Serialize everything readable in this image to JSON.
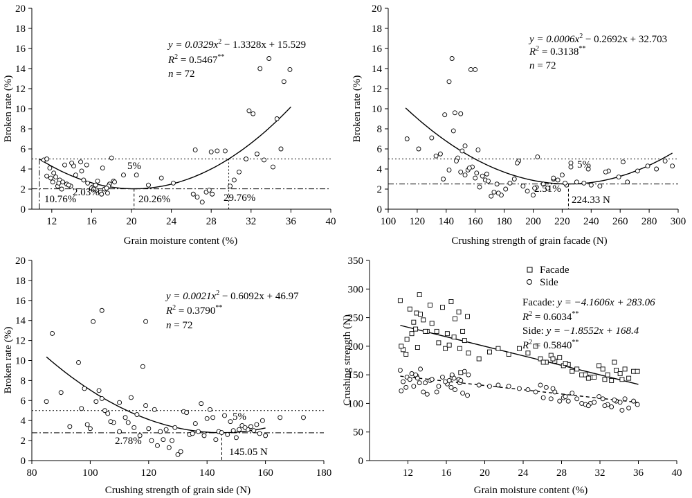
{
  "chart_data": [
    {
      "type": "scatter",
      "xlabel": "Grain moisture content (%)",
      "ylabel": "Broken rate (%)",
      "xlim": [
        10,
        40
      ],
      "ylim": [
        0,
        20
      ],
      "xticks": [
        12,
        16,
        20,
        24,
        28,
        32,
        36,
        40
      ],
      "yticks": [
        0,
        2,
        4,
        6,
        8,
        10,
        12,
        14,
        16,
        18,
        20
      ],
      "annotations": {
        "equation_main": "y = 0.0329x",
        "equation_rest": " − 1.3328x + 15.529",
        "r2_value": " = 0.5467",
        "n_value": " = 72",
        "thr_label": "5%",
        "min_label": "2.03%",
        "opt_label": "20.26%",
        "left_label": "10.76%",
        "right_label": "29.76%"
      },
      "fit": {
        "a": 0.0329,
        "b": -1.3328,
        "c": 15.529,
        "x_range": [
          10.76,
          36
        ]
      },
      "threshold": 5,
      "minimum": [
        20.26,
        2.03
      ],
      "bounds": [
        10.76,
        29.76
      ],
      "series": [
        {
          "marker": "circle",
          "x": [
            11.2,
            11.5,
            11.8,
            12.2,
            12.4,
            12.8,
            13.1,
            13.5,
            13.9,
            14.4,
            15.0,
            15.6,
            16.1,
            16.5,
            16.9,
            17.3,
            17.8,
            18.2,
            11.5,
            12.1,
            12.6,
            13.0,
            13.7,
            14.2,
            14.9,
            15.5,
            16.0,
            16.6,
            17.1,
            17.7,
            18.3,
            11.9,
            12.7,
            13.3,
            14.0,
            15.2,
            16.4,
            17.5,
            18.0,
            16.2,
            17.0,
            17.6,
            19.2,
            20.5,
            21.7,
            23.0,
            24.2,
            26.2,
            26.6,
            27.1,
            27.5,
            27.8,
            28.1,
            28.6,
            29.4,
            29.9,
            30.3,
            30.8,
            31.5,
            31.8,
            32.2,
            32.6,
            32.9,
            33.3,
            33.8,
            34.2,
            34.6,
            35.0,
            35.3,
            35.9,
            26.4,
            28.0
          ],
          "y": [
            4.9,
            5.0,
            4.1,
            3.6,
            3.2,
            2.9,
            2.7,
            2.5,
            2.3,
            3.4,
            3.8,
            2.6,
            2.2,
            1.9,
            1.7,
            2.0,
            2.5,
            2.8,
            3.3,
            2.7,
            2.3,
            2.0,
            2.4,
            4.3,
            4.7,
            4.4,
            2.1,
            2.8,
            4.1,
            2.3,
            2.7,
            3.1,
            2.6,
            4.4,
            4.6,
            2.9,
            2.4,
            2.1,
            5.1,
            2.0,
            1.5,
            1.6,
            3.4,
            3.4,
            2.4,
            3.1,
            2.6,
            1.5,
            1.2,
            0.7,
            1.7,
            1.9,
            1.5,
            5.8,
            5.8,
            2.3,
            2.9,
            3.7,
            5.0,
            9.8,
            9.5,
            5.5,
            14.0,
            4.9,
            15.0,
            4.2,
            9.0,
            6.0,
            12.7,
            13.9,
            5.9,
            5.7
          ]
        }
      ]
    },
    {
      "type": "scatter",
      "xlabel": "Crushing strength of grain facade (N)",
      "ylabel": "Broken rate (%)",
      "xlim": [
        100,
        300
      ],
      "ylim": [
        0,
        20
      ],
      "xticks": [
        100,
        120,
        140,
        160,
        180,
        200,
        220,
        240,
        260,
        280,
        300
      ],
      "yticks": [
        0,
        2,
        4,
        6,
        8,
        10,
        12,
        14,
        16,
        18,
        20
      ],
      "annotations": {
        "equation_main": "y = 0.0006x",
        "equation_rest": " − 0.2692x + 32.703",
        "r2_value": " = 0.3138",
        "n_value": " = 72",
        "thr_label": "5%",
        "min_label": "2.51%",
        "opt_label": "224.33 N"
      },
      "fit": {
        "a": 0.0006,
        "b": -0.2692,
        "c": 32.703,
        "x_range": [
          112,
          296
        ]
      },
      "threshold": 5,
      "minimum": [
        224.33,
        2.51
      ],
      "series": [
        {
          "marker": "circle",
          "x": [
            113,
            121,
            130,
            133,
            136,
            139,
            142,
            144,
            146,
            148,
            150,
            151,
            153,
            155,
            157,
            158,
            160,
            161,
            162,
            163,
            165,
            167,
            169,
            171,
            173,
            175,
            178,
            181,
            184,
            187,
            190,
            193,
            196,
            200,
            203,
            207,
            210,
            214,
            217,
            220,
            223,
            226,
            230,
            235,
            240,
            246,
            252,
            259,
            265,
            272,
            279,
            285,
            291,
            296,
            142,
            145,
            150,
            156,
            160,
            138,
            147,
            153,
            168,
            176,
            189,
            201,
            214,
            222,
            226,
            238,
            250,
            262
          ],
          "y": [
            7.0,
            6.0,
            7.1,
            5.3,
            5.5,
            9.4,
            12.7,
            15.0,
            9.6,
            5.1,
            9.5,
            5.8,
            6.3,
            3.9,
            13.9,
            4.2,
            13.9,
            3.6,
            5.9,
            2.2,
            3.3,
            2.9,
            2.8,
            1.3,
            1.7,
            2.5,
            1.4,
            2.0,
            2.6,
            3.0,
            4.8,
            2.3,
            1.8,
            1.4,
            5.2,
            2.5,
            2.1,
            3.0,
            2.9,
            3.4,
            2.4,
            4.6,
            2.7,
            2.6,
            2.4,
            2.3,
            3.8,
            3.2,
            2.7,
            3.8,
            4.3,
            4.0,
            4.8,
            4.3,
            3.9,
            7.8,
            3.7,
            4.1,
            3.1,
            3.0,
            4.8,
            3.4,
            3.5,
            1.6,
            4.6,
            2.1,
            3.1,
            2.6,
            4.2,
            4.0,
            3.7,
            4.7
          ]
        }
      ]
    },
    {
      "type": "scatter",
      "xlabel": "Crushing strength of grain side (N)",
      "ylabel": "Broken rate (%)",
      "xlim": [
        80,
        180
      ],
      "ylim": [
        0,
        20
      ],
      "xticks": [
        80,
        100,
        120,
        140,
        160,
        180
      ],
      "yticks": [
        0,
        2,
        4,
        6,
        8,
        10,
        12,
        14,
        16,
        18,
        20
      ],
      "annotations": {
        "equation_main": "y = 0.0021x",
        "equation_rest": " − 0.6092x + 46.97",
        "r2_value": " = 0.3790",
        "n_value": " = 72",
        "thr_label": "5%",
        "min_label": "2.78%",
        "opt_label": "145.05 N"
      },
      "fit": {
        "a": 0.0021,
        "b": -0.6092,
        "c": 46.97,
        "x_range": [
          85,
          160
        ]
      },
      "threshold": 5,
      "minimum": [
        145.05,
        2.78
      ],
      "series": [
        {
          "marker": "circle",
          "x": [
            85,
            87,
            90,
            93,
            96,
            98,
            99,
            101,
            103,
            104,
            105,
            106,
            108,
            110,
            112,
            114,
            116,
            118,
            119,
            120,
            122,
            124,
            126,
            128,
            130,
            132,
            134,
            136,
            138,
            140,
            142,
            144,
            146,
            148,
            150,
            152,
            154,
            156,
            158,
            160,
            173,
            102,
            104,
            110,
            117,
            121,
            125,
            129,
            133,
            137,
            141,
            145,
            149,
            153,
            157,
            100,
            107,
            113,
            119,
            123,
            127,
            131,
            135,
            139,
            143,
            147,
            151,
            155,
            159,
            115,
            97,
            165
          ],
          "y": [
            5.9,
            12.7,
            6.8,
            3.4,
            9.8,
            7.2,
            3.6,
            13.9,
            7.0,
            15.0,
            5.0,
            4.7,
            3.8,
            5.8,
            4.3,
            6.3,
            4.6,
            9.4,
            13.9,
            3.2,
            5.1,
            2.9,
            3.1,
            2.0,
            0.6,
            4.9,
            2.6,
            3.7,
            5.7,
            4.2,
            4.3,
            2.9,
            4.5,
            3.9,
            2.3,
            3.5,
            3.1,
            3.0,
            2.7,
            2.5,
            4.3,
            5.9,
            6.2,
            2.9,
            2.5,
            2.0,
            2.1,
            3.3,
            4.8,
            2.9,
            5.1,
            2.8,
            3.0,
            3.3,
            3.6,
            3.2,
            3.9,
            3.8,
            5.5,
            1.5,
            1.3,
            0.9,
            2.7,
            2.5,
            2.1,
            2.6,
            3.1,
            3.4,
            4.0,
            3.3,
            5.2,
            4.3
          ]
        }
      ]
    },
    {
      "type": "scatter",
      "xlabel": "Grain moisture content (%)",
      "ylabel": "Crushing strength (N)",
      "xlim": [
        8,
        40
      ],
      "ylim": [
        0,
        350
      ],
      "xticks": [
        12,
        16,
        20,
        24,
        28,
        32,
        36,
        40
      ],
      "yticks": [
        0,
        50,
        100,
        150,
        200,
        250,
        300,
        350
      ],
      "legend_position": "top",
      "annotations": {
        "facade_eq": "Facade: ",
        "facade_eq_b": "y = −4.1606x + 283.06",
        "facade_r2": " = 0.6034",
        "side_eq": "Side: ",
        "side_eq_b": "y = −1.8552x + 168.4",
        "side_r2": " = 0.5840"
      },
      "series": [
        {
          "name": "Facade",
          "marker": "square",
          "fit": {
            "slope": -4.1606,
            "intercept": 283.06,
            "x_range": [
              11.2,
              36
            ]
          },
          "x": [
            11.2,
            11.5,
            11.9,
            12.2,
            12.6,
            12.9,
            13.2,
            13.6,
            14.0,
            14.3,
            15.0,
            15.6,
            16.1,
            16.5,
            16.9,
            17.3,
            17.7,
            18.2,
            11.3,
            11.8,
            12.4,
            12.8,
            13.3,
            13.8,
            14.5,
            15.2,
            15.9,
            16.3,
            16.8,
            17.4,
            17.9,
            18.3,
            19.4,
            20.5,
            21.4,
            22.5,
            23.6,
            24.5,
            25.8,
            26.4,
            26.9,
            27.3,
            27.8,
            28.2,
            28.7,
            29.1,
            29.6,
            30.1,
            30.5,
            31.0,
            31.4,
            31.9,
            32.3,
            32.8,
            33.2,
            33.7,
            34.1,
            34.6,
            35.0,
            35.5,
            35.9,
            25.3,
            26.1,
            27.1,
            32.5,
            33.5,
            34.3,
            13.0,
            16.6,
            17.5,
            28.4,
            30.8
          ],
          "y": [
            280,
            194,
            212,
            265,
            242,
            258,
            290,
            246,
            226,
            272,
            226,
            268,
            222,
            278,
            248,
            260,
            226,
            252,
            200,
            186,
            222,
            230,
            256,
            226,
            240,
            206,
            196,
            202,
            216,
            196,
            210,
            188,
            178,
            190,
            196,
            186,
            196,
            188,
            178,
            172,
            184,
            174,
            180,
            166,
            168,
            156,
            160,
            150,
            150,
            146,
            146,
            166,
            160,
            150,
            140,
            158,
            152,
            160,
            144,
            156,
            156,
            200,
            172,
            178,
            142,
            172,
            142,
            198,
            146,
            154,
            170,
            144
          ]
        },
        {
          "name": "Side",
          "marker": "circle",
          "dashed": true,
          "fit": {
            "slope": -1.8552,
            "intercept": 168.4,
            "x_range": [
              11.2,
              36
            ]
          },
          "x": [
            11.2,
            11.5,
            11.9,
            12.2,
            12.6,
            12.9,
            13.2,
            13.6,
            14.0,
            14.3,
            15.0,
            15.6,
            16.1,
            16.5,
            16.9,
            17.3,
            17.7,
            18.2,
            11.3,
            11.8,
            12.4,
            12.8,
            13.3,
            13.8,
            14.5,
            15.2,
            15.9,
            16.3,
            16.8,
            17.4,
            17.9,
            18.3,
            19.4,
            20.5,
            21.4,
            22.5,
            23.6,
            24.5,
            25.8,
            26.4,
            26.9,
            27.3,
            27.8,
            28.2,
            28.7,
            29.1,
            29.6,
            30.1,
            30.5,
            31.0,
            31.4,
            31.9,
            32.3,
            32.8,
            33.2,
            33.7,
            34.1,
            34.6,
            35.0,
            35.5,
            35.9,
            25.3,
            26.1,
            27.1,
            32.5,
            33.5,
            34.3,
            13.0,
            16.6,
            17.5,
            28.4,
            30.8
          ],
          "y": [
            158,
            138,
            146,
            142,
            130,
            148,
            136,
            120,
            116,
            140,
            120,
            146,
            134,
            128,
            124,
            142,
            118,
            114,
            122,
            128,
            152,
            150,
            160,
            136,
            142,
            130,
            138,
            140,
            144,
            136,
            156,
            150,
            132,
            130,
            132,
            130,
            126,
            124,
            132,
            128,
            108,
            120,
            104,
            110,
            104,
            118,
            108,
            100,
            98,
            100,
            102,
            112,
            108,
            98,
            94,
            104,
            102,
            108,
            92,
            104,
            98,
            120,
            110,
            126,
            96,
            106,
            88,
            144,
            150,
            140,
            112,
            96
          ]
        }
      ]
    }
  ]
}
